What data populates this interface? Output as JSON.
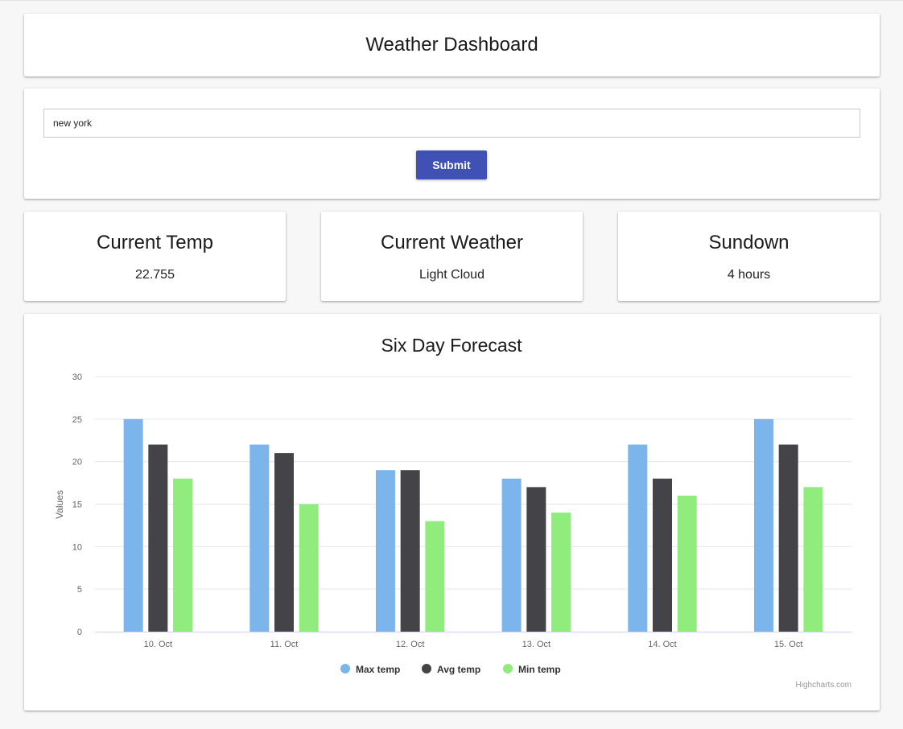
{
  "header": {
    "title": "Weather Dashboard"
  },
  "search": {
    "value": "new york",
    "submit_label": "Submit"
  },
  "stats": {
    "temp": {
      "title": "Current Temp",
      "value": "22.755"
    },
    "weather": {
      "title": "Current Weather",
      "value": "Light Cloud"
    },
    "sundown": {
      "title": "Sundown",
      "value": "4 hours"
    }
  },
  "colors": {
    "accent": "#3f51b5",
    "max": "#7cb5ec",
    "avg": "#434348",
    "min": "#90ed7d"
  },
  "chart_data": {
    "type": "bar",
    "title": "Six Day Forecast",
    "ylabel": "Values",
    "xlabel": "",
    "ylim": [
      0,
      30
    ],
    "yticks": [
      0,
      5,
      10,
      15,
      20,
      25,
      30
    ],
    "grid": true,
    "legend_position": "bottom-center",
    "credit": "Highcharts.com",
    "categories": [
      "10. Oct",
      "11. Oct",
      "12. Oct",
      "13. Oct",
      "14. Oct",
      "15. Oct"
    ],
    "series": [
      {
        "name": "Max temp",
        "color": "#7cb5ec",
        "values": [
          25,
          22,
          19,
          18,
          22,
          25
        ]
      },
      {
        "name": "Avg temp",
        "color": "#434348",
        "values": [
          22,
          21,
          19,
          17,
          18,
          22
        ]
      },
      {
        "name": "Min temp",
        "color": "#90ed7d",
        "values": [
          18,
          15,
          13,
          14,
          16,
          17
        ]
      }
    ]
  }
}
